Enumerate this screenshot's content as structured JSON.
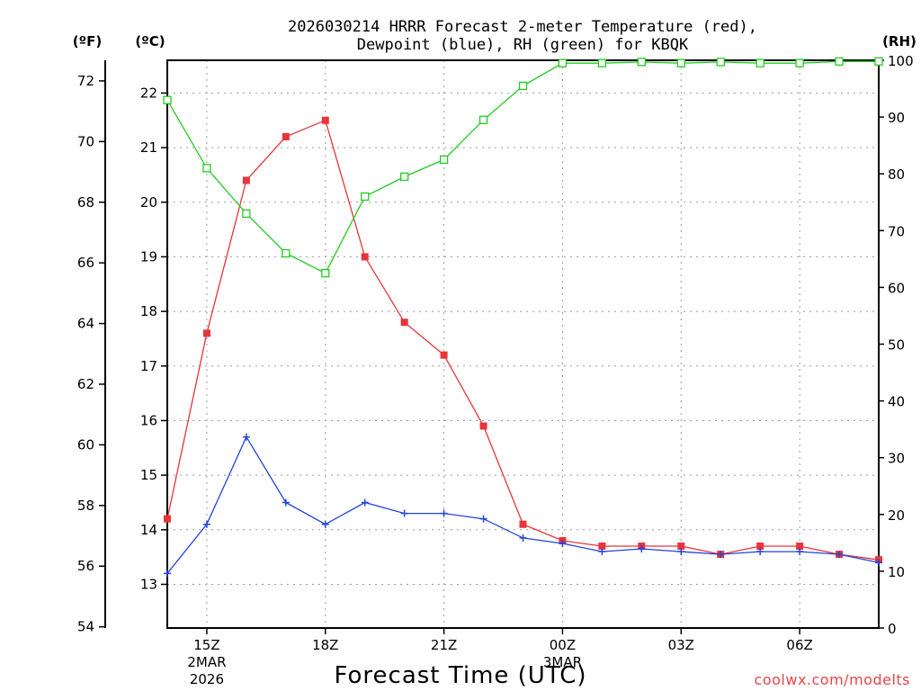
{
  "chart_data": {
    "type": "line",
    "title_line1": "2026030214 HRRR Forecast 2-meter Temperature (red),",
    "title_line2": "Dewpoint (blue), RH (green) for KBQK",
    "xlabel": "Forecast Time (UTC)",
    "credit": "coolwx.com/modelts",
    "units": {
      "fahrenheit": "(ºF)",
      "celsius": "(ºC)",
      "rh": "(RH)"
    },
    "x_hours": [
      14,
      15,
      16,
      17,
      18,
      19,
      20,
      21,
      22,
      23,
      24,
      25,
      26,
      27,
      28,
      29,
      30,
      31,
      32
    ],
    "x_range": [
      14,
      32
    ],
    "x_ticks": [
      {
        "hour": 15,
        "label": "15Z",
        "sub1": "2MAR",
        "sub2": "2026"
      },
      {
        "hour": 18,
        "label": "18Z",
        "sub1": "",
        "sub2": ""
      },
      {
        "hour": 21,
        "label": "21Z",
        "sub1": "",
        "sub2": ""
      },
      {
        "hour": 24,
        "label": "00Z",
        "sub1": "3MAR",
        "sub2": ""
      },
      {
        "hour": 27,
        "label": "03Z",
        "sub1": "",
        "sub2": ""
      },
      {
        "hour": 30,
        "label": "06Z",
        "sub1": "",
        "sub2": ""
      }
    ],
    "celsius_range": [
      12.2,
      22.6
    ],
    "celsius_ticks": [
      "13",
      "14",
      "15",
      "16",
      "17",
      "18",
      "19",
      "20",
      "21",
      "22"
    ],
    "fahrenheit_ticks": [
      "54",
      "56",
      "58",
      "60",
      "62",
      "64",
      "66",
      "68",
      "70",
      "72"
    ],
    "rh_range": [
      0,
      100
    ],
    "rh_ticks": [
      "0",
      "10",
      "20",
      "30",
      "40",
      "50",
      "60",
      "70",
      "80",
      "90",
      "100"
    ],
    "grid": true,
    "series": [
      {
        "name": "Temperature",
        "color": "#e8343a",
        "marker": "filled-square",
        "axis": "celsius",
        "values": [
          14.2,
          17.6,
          20.4,
          21.2,
          21.5,
          19.0,
          17.8,
          17.2,
          15.9,
          14.1,
          13.8,
          13.7,
          13.7,
          13.7,
          13.55,
          13.7,
          13.7,
          13.55,
          13.45
        ]
      },
      {
        "name": "Dewpoint",
        "color": "#2244dd",
        "marker": "plus",
        "axis": "celsius",
        "values": [
          13.2,
          14.1,
          15.7,
          14.5,
          14.1,
          14.5,
          14.3,
          14.3,
          14.2,
          13.85,
          13.75,
          13.6,
          13.65,
          13.6,
          13.55,
          13.6,
          13.6,
          13.55,
          13.4
        ]
      },
      {
        "name": "RH",
        "color": "#22cc22",
        "marker": "open-square",
        "axis": "rh",
        "values": [
          93,
          81,
          73,
          66,
          62.5,
          76,
          79.5,
          82.5,
          89.5,
          95.5,
          99.5,
          99.5,
          99.7,
          99.5,
          99.7,
          99.5,
          99.5,
          99.8,
          99.8
        ]
      }
    ]
  }
}
